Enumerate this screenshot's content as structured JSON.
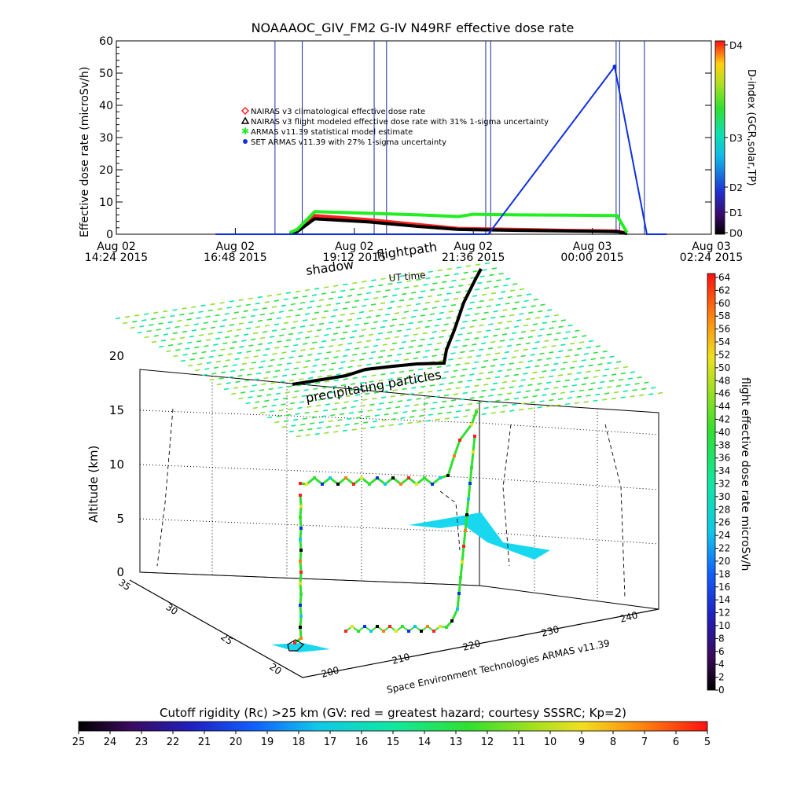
{
  "header": {
    "title": "NOAAAOC_GIV_FM2  G-IV    N49RF   effective dose rate",
    "x_axis_label": "UT time",
    "y_axis_label": "Effective dose rate (microSv/h)",
    "right_axis_label": "D-index (GCR,solar,TP)"
  },
  "chart_data": [
    {
      "type": "line",
      "title": "NOAAAOC_GIV_FM2  G-IV    N49RF   effective dose rate",
      "xlabel": "UT time",
      "ylabel": "Effective dose rate (microSv/h)",
      "ylim": [
        0,
        60
      ],
      "yticks": [
        0,
        10,
        20,
        30,
        40,
        50,
        60
      ],
      "xticks": [
        {
          "l1": "Aug 02",
          "l2": "14:24 2015"
        },
        {
          "l1": "Aug 02",
          "l2": "16:48 2015"
        },
        {
          "l1": "Aug 02",
          "l2": "19:12 2015"
        },
        {
          "l1": "Aug 02",
          "l2": "21:36 2015"
        },
        {
          "l1": "Aug 03",
          "l2": "00:00 2015"
        },
        {
          "l1": "Aug 03",
          "l2": "02:24 2015"
        }
      ],
      "xlim_hours": [
        14.4,
        26.4
      ],
      "legend": [
        {
          "label": "NAIRAS v3 climatological effective dose rate",
          "color": "#ff2020",
          "marker": "diamond"
        },
        {
          "label": "NAIRAS v3 flight modeled effective dose rate with 31% 1-sigma uncertainty",
          "color": "#000000",
          "marker": "triangle"
        },
        {
          "label": "ARMAS v11.39 statistical model estimate",
          "color": "#22ee22",
          "marker": "star"
        },
        {
          "label": "SET ARMAS v11.39 with 27% 1-sigma uncertainty",
          "color": "#1030e0",
          "marker": "dot"
        }
      ],
      "series": [
        {
          "name": "NAIRAS v3 climatological effective dose rate",
          "color": "#ff2020",
          "x": [
            17.9,
            18.05,
            18.4,
            19.5,
            20.5,
            21.3,
            21.6,
            22.5,
            23.5,
            24.5,
            24.7
          ],
          "y": [
            0.2,
            1.0,
            5.8,
            4.5,
            3.0,
            1.8,
            1.7,
            1.5,
            1.2,
            1.0,
            0.3
          ]
        },
        {
          "name": "NAIRAS v3 flight modeled effective dose rate with 31% 1-sigma uncertainty",
          "color": "#000000",
          "x": [
            17.9,
            18.05,
            18.4,
            19.5,
            20.5,
            21.3,
            21.6,
            22.5,
            23.5,
            24.5,
            24.7
          ],
          "y": [
            0.2,
            0.8,
            4.8,
            3.8,
            2.4,
            1.5,
            1.4,
            1.2,
            1.0,
            0.8,
            0.2
          ]
        },
        {
          "name": "ARMAS v11.39 statistical model estimate",
          "color": "#22ee22",
          "x": [
            17.9,
            18.05,
            18.4,
            19.5,
            20.5,
            21.3,
            21.6,
            22.5,
            23.5,
            24.5,
            24.7
          ],
          "y": [
            0.5,
            1.5,
            7.0,
            6.5,
            6.0,
            5.5,
            6.2,
            6.0,
            5.9,
            5.8,
            0.5
          ]
        },
        {
          "name": "SET ARMAS v11.39 with 27% 1-sigma uncertainty",
          "color": "#1030e0",
          "x": [
            16.4,
            17.8,
            18.25,
            19.65,
            19.75,
            21.9,
            24.45,
            25.1,
            25.5
          ],
          "y": [
            0.0,
            0.0,
            0.0,
            0.0,
            0.0,
            0.0,
            52.0,
            0.0,
            0.0
          ]
        }
      ],
      "spikes_x": [
        17.6,
        18.15,
        19.6,
        19.85,
        21.85,
        21.95,
        24.48,
        24.55,
        25.05
      ]
    },
    {
      "type": "scatter",
      "title": "flightpath",
      "zlabel": "Altitude (km)",
      "zticks": [
        0,
        5,
        10,
        15,
        20
      ],
      "lat_ticks": [
        20,
        25,
        30,
        35
      ],
      "lon_ticks": [
        200,
        210,
        220,
        230,
        240
      ],
      "labels": [
        "shadow",
        "flightpath",
        "precipitating particles",
        "Space Environment Technologies ARMAS v11.39"
      ]
    }
  ],
  "colorbars": {
    "dindex": {
      "ticks": [
        "D4",
        "D3",
        "D2",
        "D1",
        "D0"
      ]
    },
    "dose": {
      "label": "flight effective dose rate microSv/h",
      "ticks": [
        "64",
        "62",
        "60",
        "58",
        "56",
        "54",
        "52",
        "50",
        "48",
        "46",
        "44",
        "42",
        "40",
        "38",
        "36",
        "34",
        "32",
        "30",
        "28",
        "26",
        "24",
        "22",
        "20",
        "18",
        "16",
        "14",
        "12",
        "10",
        "8",
        "6",
        "4",
        "2",
        "0"
      ]
    },
    "cutoff": {
      "label": "Cutoff rigidity (Rc) >25 km (GV: red = greatest hazard; courtesy SSSRC; Kp=2)",
      "ticks": [
        "25",
        "24",
        "23",
        "22",
        "21",
        "20",
        "19",
        "18",
        "17",
        "16",
        "15",
        "14",
        "13",
        "12",
        "11",
        "10",
        "9",
        "8",
        "7",
        "6",
        "5"
      ]
    }
  }
}
